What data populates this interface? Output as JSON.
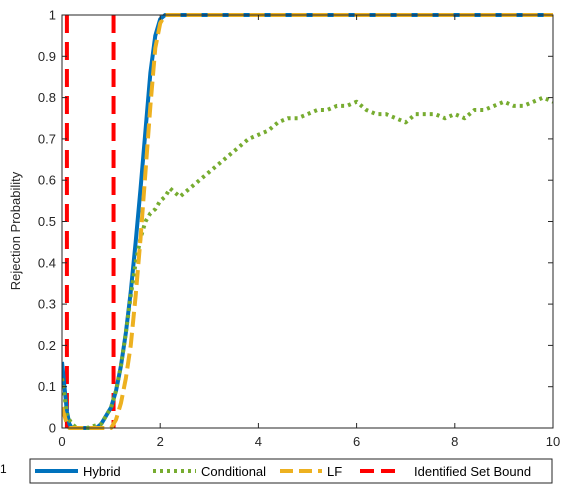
{
  "chart_data": {
    "type": "line",
    "xlabel": "",
    "ylabel": "Rejection Probability",
    "xlim": [
      0,
      10
    ],
    "ylim": [
      0,
      1
    ],
    "xticks": [
      0,
      2,
      4,
      6,
      8,
      10
    ],
    "yticks": [
      0,
      0.1,
      0.2,
      0.3,
      0.4,
      0.5,
      0.6,
      0.7,
      0.8,
      0.9,
      1
    ],
    "grid": false,
    "legend_position": "bottom",
    "series": [
      {
        "name": "Hybrid",
        "color": "#0072BD",
        "style": "solid",
        "x": [
          0,
          0.05,
          0.1,
          0.15,
          0.2,
          0.3,
          0.5,
          0.7,
          0.8,
          0.9,
          1.0,
          1.1,
          1.2,
          1.3,
          1.4,
          1.5,
          1.6,
          1.7,
          1.8,
          1.9,
          2.0,
          2.1,
          2.2,
          3,
          4,
          5,
          6,
          7,
          8,
          9,
          10
        ],
        "y": [
          0.16,
          0.1,
          0.04,
          0.01,
          0,
          0,
          0,
          0,
          0.01,
          0.03,
          0.05,
          0.09,
          0.15,
          0.23,
          0.33,
          0.45,
          0.58,
          0.72,
          0.86,
          0.95,
          0.99,
          1,
          1,
          1,
          1,
          1,
          1,
          1,
          1,
          1,
          1
        ]
      },
      {
        "name": "Conditional",
        "color": "#77AC30",
        "style": "dotted",
        "x": [
          0,
          0.05,
          0.1,
          0.2,
          0.3,
          0.5,
          0.8,
          0.9,
          1.0,
          1.1,
          1.2,
          1.3,
          1.4,
          1.5,
          1.6,
          1.7,
          1.8,
          1.9,
          2.0,
          2.1,
          2.2,
          2.4,
          2.6,
          2.8,
          3.0,
          3.2,
          3.4,
          3.6,
          3.8,
          4.0,
          4.2,
          4.4,
          4.6,
          4.8,
          5.0,
          5.2,
          5.4,
          5.6,
          5.8,
          6.0,
          6.2,
          6.4,
          6.6,
          6.8,
          7.0,
          7.2,
          7.4,
          7.6,
          7.8,
          8.0,
          8.2,
          8.4,
          8.6,
          8.8,
          9.0,
          9.2,
          9.4,
          9.6,
          9.8,
          10
        ],
        "y": [
          0.12,
          0.08,
          0.03,
          0.01,
          0,
          0,
          0.01,
          0.03,
          0.05,
          0.09,
          0.15,
          0.23,
          0.32,
          0.4,
          0.46,
          0.5,
          0.52,
          0.53,
          0.55,
          0.56,
          0.58,
          0.56,
          0.58,
          0.6,
          0.62,
          0.64,
          0.66,
          0.68,
          0.7,
          0.71,
          0.72,
          0.74,
          0.75,
          0.75,
          0.76,
          0.77,
          0.77,
          0.78,
          0.78,
          0.79,
          0.77,
          0.76,
          0.76,
          0.75,
          0.74,
          0.76,
          0.76,
          0.76,
          0.75,
          0.76,
          0.75,
          0.77,
          0.77,
          0.78,
          0.79,
          0.78,
          0.78,
          0.79,
          0.8,
          0.79
        ]
      },
      {
        "name": "LF",
        "color": "#EDB120",
        "style": "dashed",
        "x": [
          0,
          0.05,
          0.1,
          0.15,
          0.2,
          0.5,
          1.0,
          1.1,
          1.2,
          1.3,
          1.4,
          1.5,
          1.6,
          1.7,
          1.8,
          1.9,
          2.0,
          2.1,
          2.2,
          3,
          4,
          5,
          6,
          7,
          8,
          9,
          10
        ],
        "y": [
          0.05,
          0.03,
          0.01,
          0,
          0,
          0,
          0,
          0.02,
          0.06,
          0.12,
          0.2,
          0.32,
          0.46,
          0.62,
          0.78,
          0.92,
          0.98,
          1,
          1,
          1,
          1,
          1,
          1,
          1,
          1,
          1,
          1
        ]
      },
      {
        "name": "Identified Set Bound",
        "color": "#FF0000",
        "style": "dashed",
        "vlines": [
          0.1,
          1.05
        ]
      }
    ]
  },
  "page_edge_text": "1"
}
